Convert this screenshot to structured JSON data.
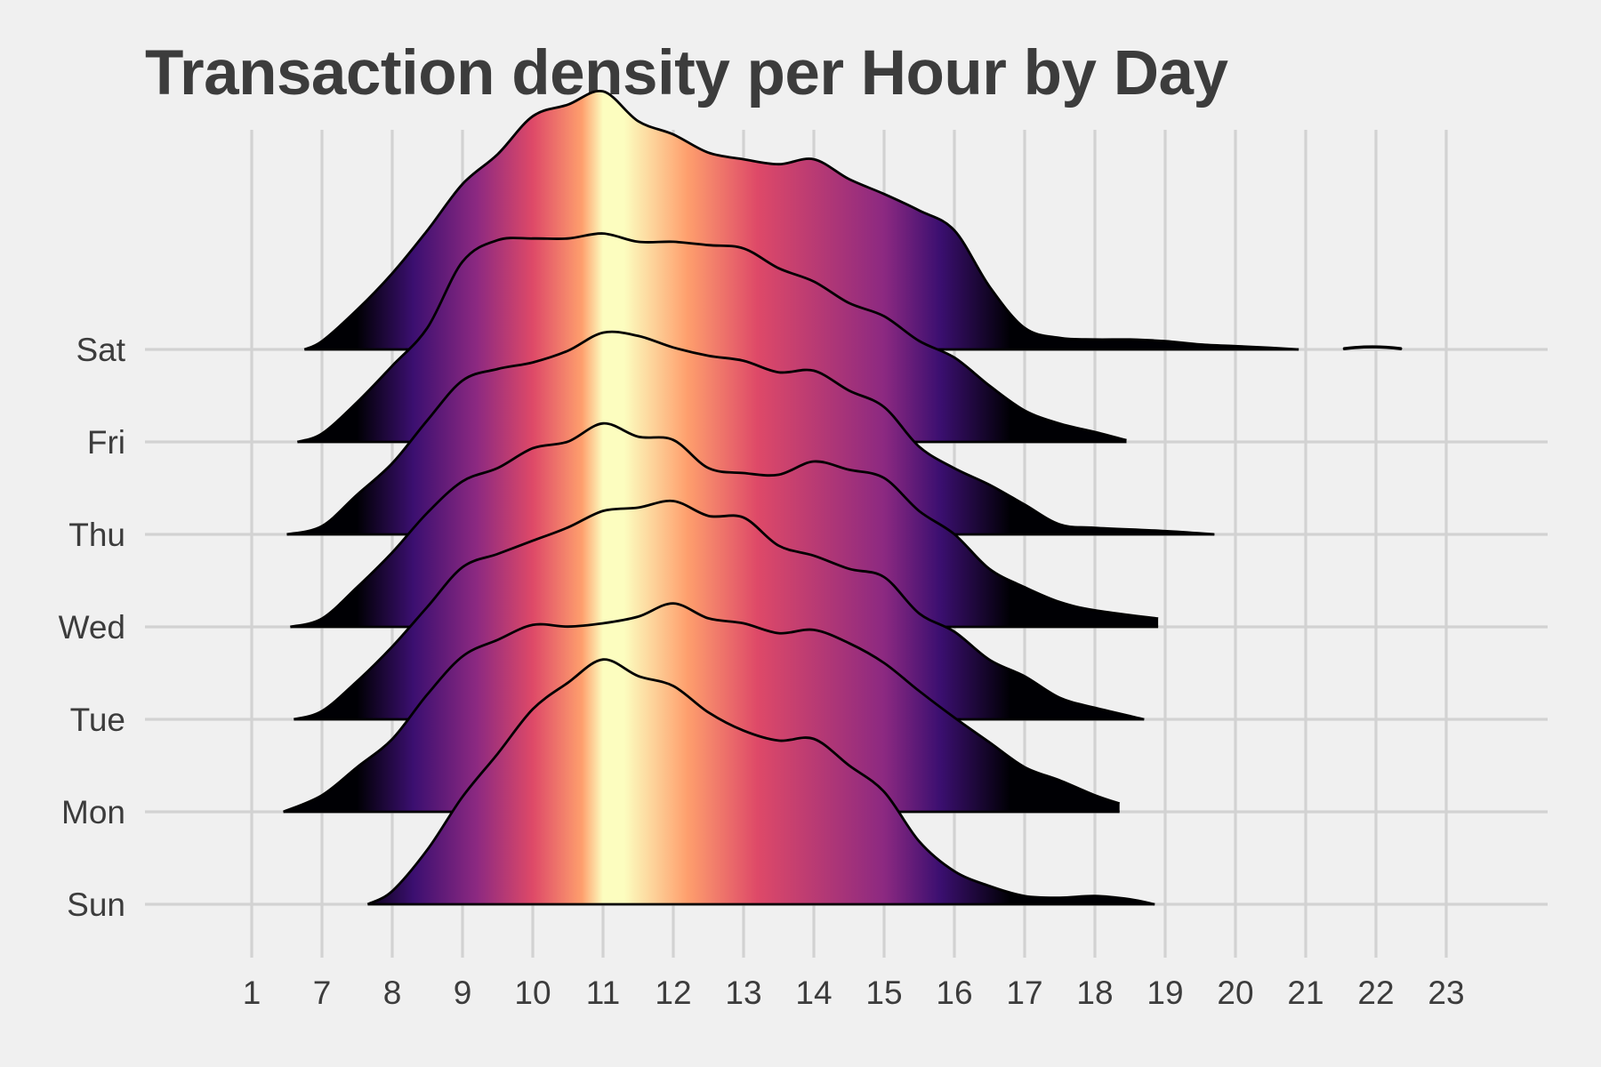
{
  "chart_data": {
    "type": "ridgeline",
    "title": "Transaction density per Hour by Day",
    "xlabel": "",
    "ylabel": "",
    "x_ticks": [
      "1",
      "7",
      "8",
      "9",
      "10",
      "11",
      "12",
      "13",
      "14",
      "15",
      "16",
      "17",
      "18",
      "19",
      "20",
      "21",
      "22",
      "23"
    ],
    "y_categories": [
      "Sun",
      "Mon",
      "Tue",
      "Wed",
      "Thu",
      "Fri",
      "Sat"
    ],
    "colormap": "magma",
    "fill_colors": [
      "#000004",
      "#3b0f70",
      "#8c2981",
      "#de4968",
      "#fe9f6d",
      "#fcfdbf"
    ],
    "grid": true,
    "legend": "none",
    "series": [
      {
        "day": "Sun",
        "points": [
          [
            7.65,
            0.0
          ],
          [
            8.0,
            0.08
          ],
          [
            8.5,
            0.33
          ],
          [
            9.0,
            0.65
          ],
          [
            9.5,
            0.91
          ],
          [
            10.0,
            1.18
          ],
          [
            10.5,
            1.34
          ],
          [
            11.0,
            1.48
          ],
          [
            11.5,
            1.38
          ],
          [
            12.0,
            1.32
          ],
          [
            12.5,
            1.16
          ],
          [
            13.0,
            1.05
          ],
          [
            13.5,
            0.99
          ],
          [
            14.0,
            1.0
          ],
          [
            14.5,
            0.84
          ],
          [
            15.0,
            0.68
          ],
          [
            15.5,
            0.38
          ],
          [
            16.0,
            0.2
          ],
          [
            16.5,
            0.11
          ],
          [
            17.0,
            0.05
          ],
          [
            17.5,
            0.04
          ],
          [
            18.0,
            0.05
          ],
          [
            18.5,
            0.03
          ],
          [
            18.85,
            0.0
          ]
        ]
      },
      {
        "day": "Mon",
        "points": [
          [
            6.45,
            0.0
          ],
          [
            7.0,
            0.1
          ],
          [
            7.5,
            0.27
          ],
          [
            8.0,
            0.44
          ],
          [
            8.5,
            0.71
          ],
          [
            9.0,
            0.94
          ],
          [
            9.5,
            1.04
          ],
          [
            10.0,
            1.13
          ],
          [
            10.5,
            1.12
          ],
          [
            11.0,
            1.14
          ],
          [
            11.5,
            1.18
          ],
          [
            12.0,
            1.26
          ],
          [
            12.5,
            1.17
          ],
          [
            13.0,
            1.14
          ],
          [
            13.5,
            1.08
          ],
          [
            14.0,
            1.1
          ],
          [
            14.5,
            1.02
          ],
          [
            15.0,
            0.9
          ],
          [
            15.5,
            0.73
          ],
          [
            16.0,
            0.57
          ],
          [
            16.5,
            0.42
          ],
          [
            17.0,
            0.27
          ],
          [
            17.5,
            0.19
          ],
          [
            18.0,
            0.1
          ],
          [
            18.35,
            0.05
          ]
        ]
      },
      {
        "day": "Tue",
        "points": [
          [
            6.6,
            0.0
          ],
          [
            7.0,
            0.05
          ],
          [
            7.5,
            0.23
          ],
          [
            8.0,
            0.44
          ],
          [
            8.5,
            0.68
          ],
          [
            9.0,
            0.92
          ],
          [
            9.5,
            1.0
          ],
          [
            10.0,
            1.08
          ],
          [
            10.5,
            1.16
          ],
          [
            11.0,
            1.26
          ],
          [
            11.5,
            1.28
          ],
          [
            12.0,
            1.32
          ],
          [
            12.5,
            1.23
          ],
          [
            13.0,
            1.22
          ],
          [
            13.5,
            1.05
          ],
          [
            14.0,
            0.99
          ],
          [
            14.5,
            0.91
          ],
          [
            15.0,
            0.86
          ],
          [
            15.5,
            0.64
          ],
          [
            16.0,
            0.53
          ],
          [
            16.5,
            0.36
          ],
          [
            17.0,
            0.26
          ],
          [
            17.5,
            0.13
          ],
          [
            18.0,
            0.07
          ],
          [
            18.7,
            0.0
          ]
        ]
      },
      {
        "day": "Wed",
        "points": [
          [
            6.55,
            0.0
          ],
          [
            7.0,
            0.05
          ],
          [
            7.5,
            0.24
          ],
          [
            8.0,
            0.45
          ],
          [
            8.5,
            0.69
          ],
          [
            9.0,
            0.88
          ],
          [
            9.5,
            0.96
          ],
          [
            10.0,
            1.08
          ],
          [
            10.5,
            1.12
          ],
          [
            11.0,
            1.23
          ],
          [
            11.5,
            1.15
          ],
          [
            12.0,
            1.13
          ],
          [
            12.5,
            0.96
          ],
          [
            13.0,
            0.93
          ],
          [
            13.5,
            0.92
          ],
          [
            14.0,
            1.0
          ],
          [
            14.5,
            0.95
          ],
          [
            15.0,
            0.9
          ],
          [
            15.5,
            0.7
          ],
          [
            16.0,
            0.56
          ],
          [
            16.5,
            0.35
          ],
          [
            17.0,
            0.24
          ],
          [
            17.5,
            0.15
          ],
          [
            18.0,
            0.1
          ],
          [
            18.9,
            0.05
          ]
        ]
      },
      {
        "day": "Thu",
        "points": [
          [
            6.5,
            0.0
          ],
          [
            7.0,
            0.05
          ],
          [
            7.5,
            0.24
          ],
          [
            8.0,
            0.43
          ],
          [
            8.5,
            0.69
          ],
          [
            9.0,
            0.93
          ],
          [
            9.5,
            1.0
          ],
          [
            10.0,
            1.04
          ],
          [
            10.5,
            1.11
          ],
          [
            11.0,
            1.22
          ],
          [
            11.5,
            1.2
          ],
          [
            12.0,
            1.13
          ],
          [
            12.5,
            1.08
          ],
          [
            13.0,
            1.05
          ],
          [
            13.5,
            0.98
          ],
          [
            14.0,
            0.99
          ],
          [
            14.5,
            0.87
          ],
          [
            15.0,
            0.77
          ],
          [
            15.5,
            0.53
          ],
          [
            16.0,
            0.4
          ],
          [
            16.5,
            0.3
          ],
          [
            17.0,
            0.18
          ],
          [
            17.5,
            0.06
          ],
          [
            18.0,
            0.04
          ],
          [
            19.0,
            0.02
          ],
          [
            19.7,
            0.0
          ]
        ]
      },
      {
        "day": "Fri",
        "points": [
          [
            6.65,
            0.0
          ],
          [
            7.0,
            0.05
          ],
          [
            7.5,
            0.24
          ],
          [
            8.0,
            0.46
          ],
          [
            8.5,
            0.69
          ],
          [
            9.0,
            1.09
          ],
          [
            9.5,
            1.22
          ],
          [
            10.0,
            1.23
          ],
          [
            10.5,
            1.23
          ],
          [
            11.0,
            1.26
          ],
          [
            11.5,
            1.21
          ],
          [
            12.0,
            1.21
          ],
          [
            12.5,
            1.19
          ],
          [
            13.0,
            1.17
          ],
          [
            13.5,
            1.05
          ],
          [
            14.0,
            0.97
          ],
          [
            14.5,
            0.84
          ],
          [
            15.0,
            0.76
          ],
          [
            15.5,
            0.61
          ],
          [
            16.0,
            0.51
          ],
          [
            16.5,
            0.34
          ],
          [
            17.0,
            0.19
          ],
          [
            17.5,
            0.11
          ],
          [
            18.0,
            0.06
          ],
          [
            18.45,
            0.01
          ]
        ]
      },
      {
        "day": "Sat",
        "points": [
          [
            6.75,
            0.0
          ],
          [
            7.0,
            0.05
          ],
          [
            7.5,
            0.24
          ],
          [
            8.0,
            0.46
          ],
          [
            8.5,
            0.72
          ],
          [
            9.0,
            1.0
          ],
          [
            9.5,
            1.18
          ],
          [
            10.0,
            1.41
          ],
          [
            10.5,
            1.48
          ],
          [
            11.0,
            1.56
          ],
          [
            11.5,
            1.38
          ],
          [
            12.0,
            1.3
          ],
          [
            12.5,
            1.19
          ],
          [
            13.0,
            1.15
          ],
          [
            13.5,
            1.12
          ],
          [
            14.0,
            1.15
          ],
          [
            14.5,
            1.03
          ],
          [
            15.0,
            0.94
          ],
          [
            15.5,
            0.84
          ],
          [
            16.0,
            0.72
          ],
          [
            16.5,
            0.38
          ],
          [
            17.0,
            0.13
          ],
          [
            17.5,
            0.07
          ],
          [
            18.0,
            0.06
          ],
          [
            18.5,
            0.06
          ],
          [
            19.0,
            0.05
          ],
          [
            19.5,
            0.03
          ],
          [
            20.0,
            0.02
          ],
          [
            20.5,
            0.01
          ],
          [
            20.9,
            0.0
          ]
        ]
      }
    ],
    "extra_segments": [
      {
        "day": "Sat",
        "x": [
          21.55,
          22.35
        ],
        "y": 0.01
      }
    ]
  }
}
